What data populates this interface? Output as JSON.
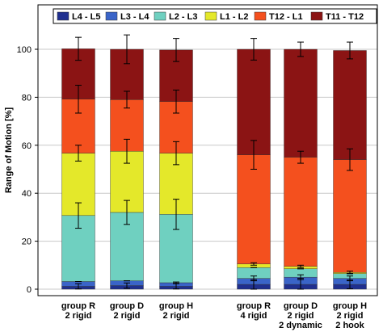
{
  "chart_data": {
    "type": "bar",
    "stacked": true,
    "ylabel": "Range of Motion [%]",
    "ylim": [
      0,
      100
    ],
    "yticks": [
      0,
      20,
      40,
      60,
      80,
      100
    ],
    "legend_position": "top",
    "categories": [
      [
        "group R",
        "2 rigid"
      ],
      [
        "group D",
        "2 rigid"
      ],
      [
        "group H",
        "2 rigid"
      ],
      [
        "group R",
        "4 rigid"
      ],
      [
        "group D",
        "2 rigid",
        "2 dynamic"
      ],
      [
        "group H",
        "2 rigid",
        "2 hook"
      ]
    ],
    "series": [
      {
        "name": "L4 - L5",
        "color": "#1f2f8f",
        "values": [
          1.2,
          1.5,
          1.2,
          2.0,
          2.0,
          2.0
        ],
        "err_top": [
          2.3,
          2.6,
          2.3,
          4.0,
          4.5,
          3.8
        ]
      },
      {
        "name": "L3 - L4",
        "color": "#3a64c8",
        "values": [
          2.0,
          2.0,
          1.5,
          2.5,
          3.0,
          2.5
        ],
        "err_top": [
          3.0,
          3.2,
          3.0,
          5.5,
          6.0,
          5.5
        ]
      },
      {
        "name": "L2 - L3",
        "color": "#6fd0c0",
        "values": [
          27.5,
          28.5,
          28.5,
          4.5,
          3.5,
          2.0
        ],
        "err_top": [
          36.0,
          37.0,
          37.5,
          9.0,
          8.5,
          6.5
        ]
      },
      {
        "name": "L1 - L2",
        "color": "#e4e82a",
        "values": [
          26.0,
          25.5,
          25.5,
          1.5,
          1.0,
          0.5
        ],
        "err_top": [
          60.0,
          62.5,
          61.5,
          11.0,
          10.0,
          7.5
        ]
      },
      {
        "name": "T12 - L1",
        "color": "#f4501e",
        "values": [
          22.5,
          21.5,
          21.5,
          45.5,
          45.5,
          47.0
        ],
        "err_top": [
          85.0,
          82.5,
          83.0,
          62.0,
          57.5,
          58.5
        ]
      },
      {
        "name": "T11 - T12",
        "color": "#8b1414",
        "values": [
          21.0,
          21.0,
          21.5,
          44.0,
          45.0,
          45.5
        ],
        "err_top": [
          105.0,
          106.0,
          104.5,
          104.5,
          103.0,
          103.0
        ]
      }
    ],
    "background_color": "#ffffff"
  }
}
